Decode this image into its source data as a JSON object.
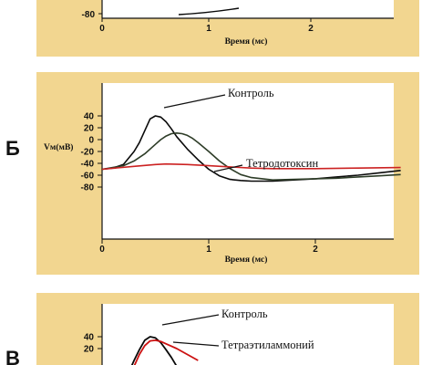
{
  "colors": {
    "frame": "#f2d690",
    "plot_bg": "#ffffff",
    "control": "#0a0a0a",
    "ttx": "#2e3d28",
    "ttx_na": "#cc2222",
    "tea": "#cc1111"
  },
  "chart_data": [
    {
      "panel": "A",
      "type": "line",
      "xlabel": "Время (мс)",
      "x_ticks": [
        "0",
        "1",
        "2"
      ],
      "y_ticks": [
        "-80"
      ],
      "xlim": [
        0,
        2.8
      ],
      "ylim": [
        -85,
        45
      ],
      "series": [
        {
          "x": [
            0.0,
            0.3,
            0.6,
            0.9,
            1.1,
            1.2
          ],
          "y": [
            -80,
            -79,
            -78,
            -77,
            -76,
            -75
          ]
        }
      ]
    },
    {
      "panel": "Б",
      "label": "Б",
      "type": "line",
      "ylabel": "Vм(мВ)",
      "xlabel": "Время (мс)",
      "x_ticks": [
        "0",
        "1",
        "2"
      ],
      "y_ticks": [
        "40",
        "20",
        "0",
        "-20",
        "-40",
        "-60",
        "-80"
      ],
      "xlim": [
        0,
        2.8
      ],
      "ylim": [
        -85,
        45
      ],
      "annotations": [
        "Контроль",
        "Тетродотоксин"
      ],
      "series": [
        {
          "name": "Контроль",
          "x": [
            0,
            0.1,
            0.2,
            0.3,
            0.35,
            0.4,
            0.45,
            0.5,
            0.55,
            0.6,
            0.65,
            0.7,
            0.8,
            0.9,
            1.0,
            1.1,
            1.2,
            1.3,
            1.4,
            1.5,
            1.6,
            1.8,
            2.0,
            2.2,
            2.4,
            2.6,
            2.8
          ],
          "y": [
            -50,
            -48,
            -42,
            -20,
            -5,
            15,
            35,
            40,
            38,
            30,
            18,
            5,
            -16,
            -34,
            -50,
            -61,
            -67,
            -69,
            -70,
            -70,
            -70,
            -68,
            -66,
            -63,
            -60,
            -56,
            -52
          ]
        },
        {
          "name": "Тетродотоксин",
          "x": [
            0,
            0.2,
            0.3,
            0.4,
            0.5,
            0.55,
            0.6,
            0.65,
            0.7,
            0.75,
            0.8,
            0.85,
            0.9,
            1.0,
            1.1,
            1.2,
            1.3,
            1.4,
            1.6,
            1.8,
            2.0,
            2.2,
            2.4,
            2.6,
            2.8
          ],
          "y": [
            -50,
            -44,
            -36,
            -24,
            -8,
            0,
            6,
            10,
            11,
            10,
            7,
            2,
            -5,
            -20,
            -36,
            -49,
            -59,
            -64,
            -68,
            -67,
            -66,
            -65,
            -63,
            -61,
            -59
          ]
        },
        {
          "name": "",
          "x": [
            0,
            0.3,
            0.5,
            0.6,
            0.8,
            1.0,
            1.2,
            1.4,
            1.6,
            2.0,
            2.4,
            2.8
          ],
          "y": [
            -50,
            -45,
            -42,
            -41,
            -42,
            -44,
            -46,
            -48,
            -49,
            -49,
            -48,
            -47
          ]
        }
      ]
    },
    {
      "panel": "В",
      "label": "В",
      "type": "line",
      "y_ticks": [
        "40",
        "20"
      ],
      "xlim": [
        0,
        2.8
      ],
      "ylim": [
        -85,
        45
      ],
      "annotations": [
        "Контроль",
        "Тетраэтиламмоний"
      ],
      "series": [
        {
          "name": "Контроль",
          "x": [
            0.25,
            0.3,
            0.35,
            0.4,
            0.45,
            0.5,
            0.55,
            0.6,
            0.65,
            0.7
          ],
          "y": [
            -20,
            0,
            18,
            34,
            40,
            38,
            30,
            18,
            5,
            -10
          ]
        },
        {
          "name": "Тетраэтиламмоний",
          "x": [
            0.3,
            0.35,
            0.4,
            0.45,
            0.5,
            0.55,
            0.6,
            0.7,
            0.8,
            0.9
          ],
          "y": [
            -10,
            10,
            25,
            33,
            34,
            32,
            28,
            20,
            10,
            0
          ]
        }
      ]
    }
  ]
}
